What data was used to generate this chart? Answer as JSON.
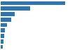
{
  "values": [
    21.5,
    9.8,
    4.8,
    3.5,
    2.1,
    1.5,
    1.1,
    0.9,
    0.7
  ],
  "bar_color": "#2e75b6",
  "background_color": "#ffffff",
  "xlim": [
    0,
    23
  ],
  "grid_color": "#e0e0e0"
}
